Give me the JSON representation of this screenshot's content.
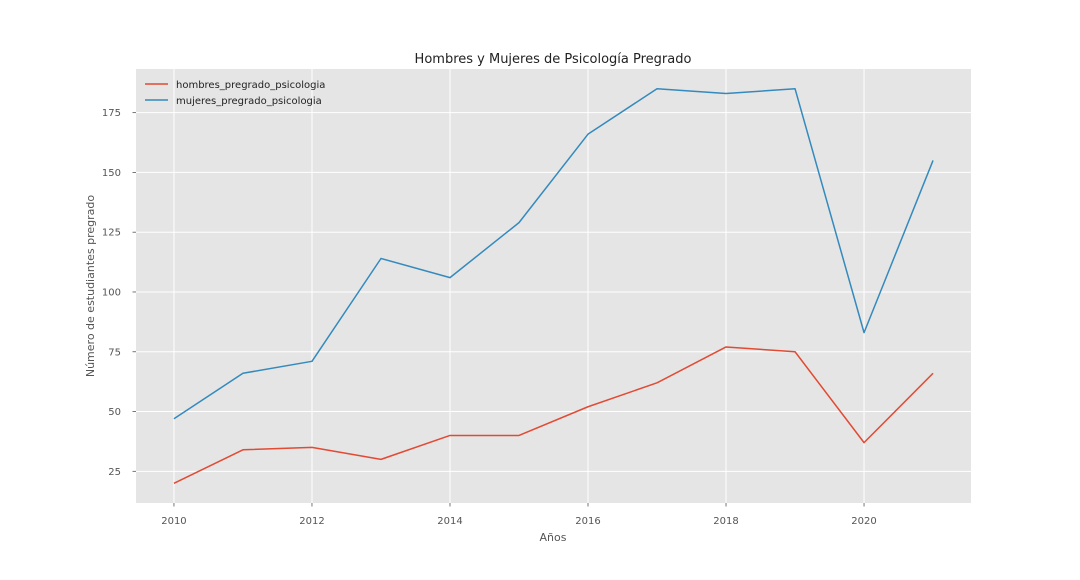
{
  "chart_data": {
    "type": "line",
    "title": "Hombres y Mujeres de Psicología Pregrado",
    "xlabel": "Años",
    "ylabel": "Número de estudiantes pregrado",
    "x": [
      2010,
      2011,
      2012,
      2013,
      2014,
      2015,
      2016,
      2017,
      2018,
      2019,
      2020,
      2021
    ],
    "xlim": [
      2009.45,
      2021.55
    ],
    "ylim": [
      11.75,
      193.25
    ],
    "x_ticks": [
      2010,
      2012,
      2014,
      2016,
      2018,
      2020
    ],
    "y_ticks": [
      25,
      50,
      75,
      100,
      125,
      150,
      175
    ],
    "grid": true,
    "legend_position": "top-left",
    "series": [
      {
        "name": "hombres_pregrado_psicologia",
        "color": "#e24a33",
        "values": [
          20,
          34,
          35,
          30,
          40,
          40,
          52,
          62,
          77,
          75,
          37,
          66
        ]
      },
      {
        "name": "mujeres_pregrado_psicologia",
        "color": "#348abd",
        "values": [
          47,
          66,
          71,
          114,
          106,
          129,
          166,
          185,
          183,
          185,
          83,
          155
        ]
      }
    ]
  },
  "style": {
    "plot_background": "#e5e5e5",
    "grid_color": "#ffffff",
    "tick_color": "#555555",
    "text_color": "#222222"
  }
}
